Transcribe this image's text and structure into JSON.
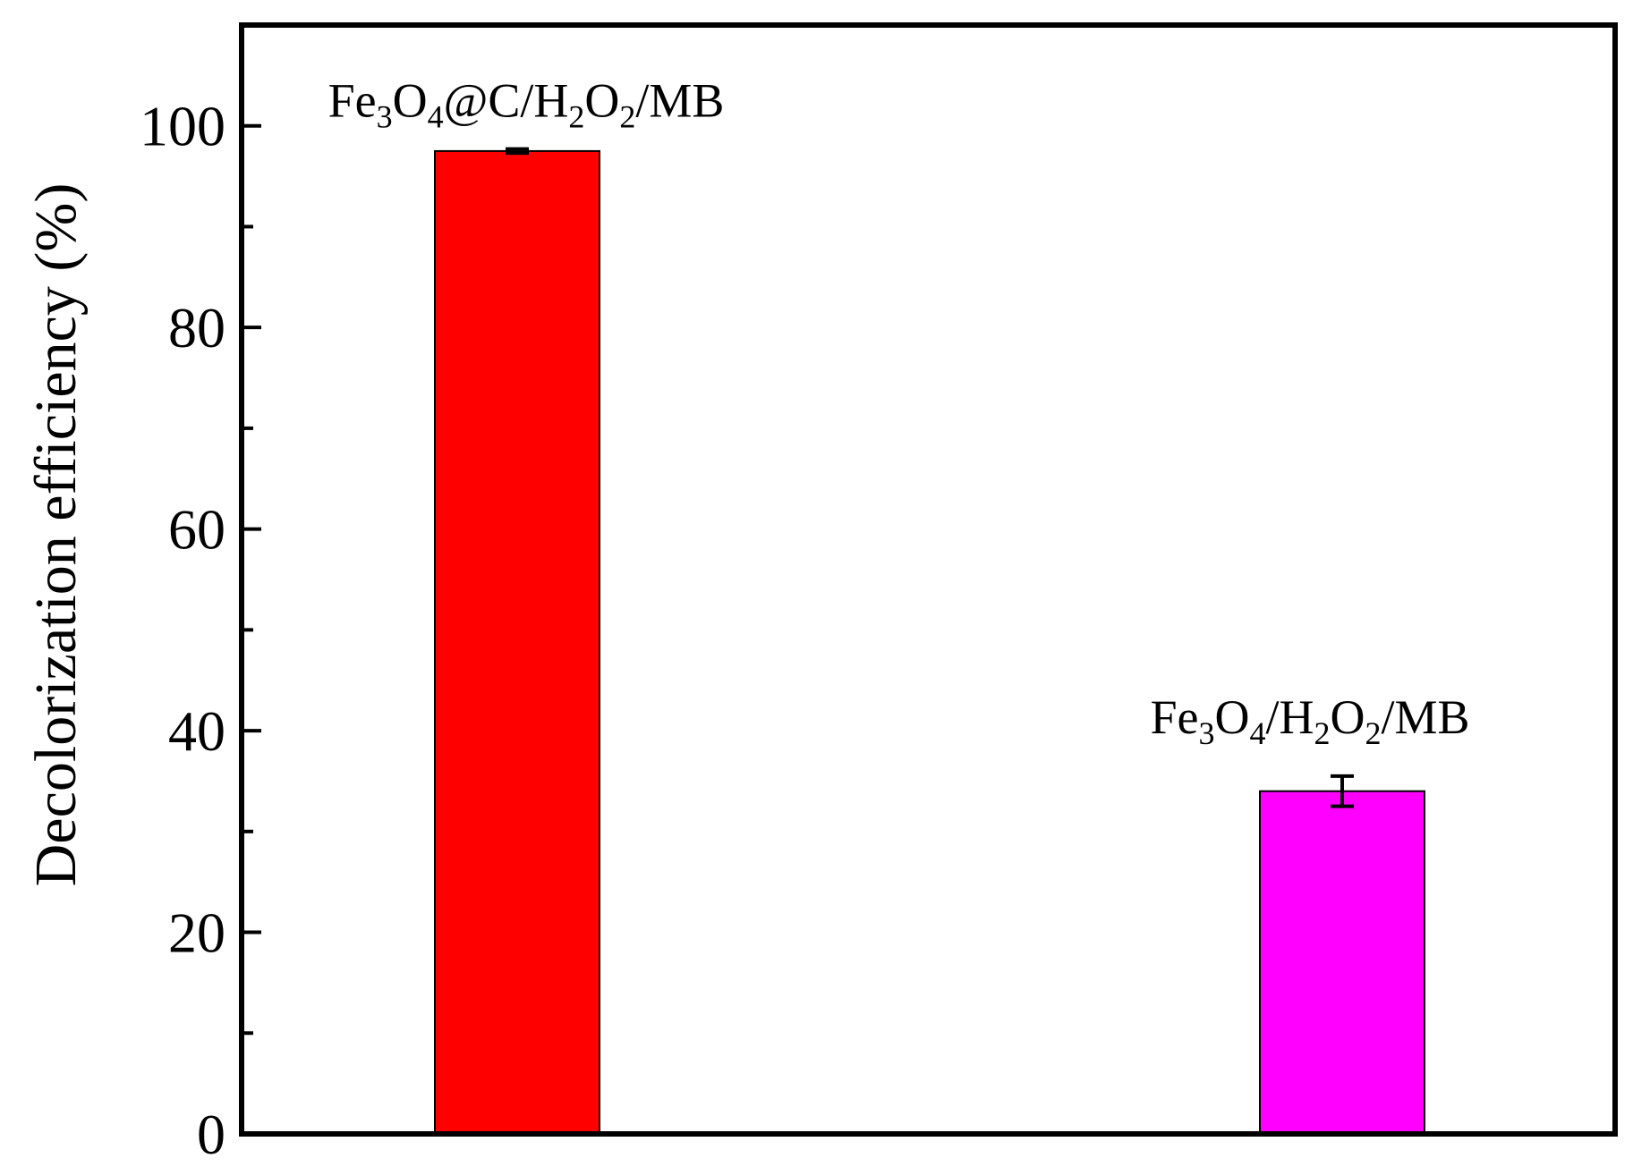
{
  "chart_data": {
    "type": "bar",
    "title": "",
    "xlabel": "",
    "ylabel": "Decolorization efficiency (%)",
    "ylim": [
      0,
      110
    ],
    "grid": false,
    "legend": "none",
    "y_ticks": [
      0,
      20,
      40,
      60,
      80,
      100
    ],
    "y_tick_labels": [
      "0",
      "20",
      "40",
      "60",
      "80",
      "100"
    ],
    "y_minor_step": 10,
    "categories": [
      {
        "text": "Fe3O4@C/H2O2/MB",
        "parts": [
          {
            "t": "Fe",
            "sub": false
          },
          {
            "t": "3",
            "sub": true
          },
          {
            "t": "O",
            "sub": false
          },
          {
            "t": "4",
            "sub": true
          },
          {
            "t": "@C/H",
            "sub": false
          },
          {
            "t": "2",
            "sub": true
          },
          {
            "t": "O",
            "sub": false
          },
          {
            "t": "2",
            "sub": true
          },
          {
            "t": "/MB",
            "sub": false
          }
        ]
      },
      {
        "text": "Fe3O4/H2O2/MB",
        "parts": [
          {
            "t": "Fe",
            "sub": false
          },
          {
            "t": "3",
            "sub": true
          },
          {
            "t": "O",
            "sub": false
          },
          {
            "t": "4",
            "sub": true
          },
          {
            "t": "/H",
            "sub": false
          },
          {
            "t": "2",
            "sub": true
          },
          {
            "t": "O",
            "sub": false
          },
          {
            "t": "2",
            "sub": true
          },
          {
            "t": "/MB",
            "sub": false
          }
        ]
      }
    ],
    "values": [
      97.5,
      34.0
    ],
    "errors": [
      0.2,
      1.5
    ],
    "colors": [
      "#ff0000",
      "#ff00ff"
    ]
  }
}
